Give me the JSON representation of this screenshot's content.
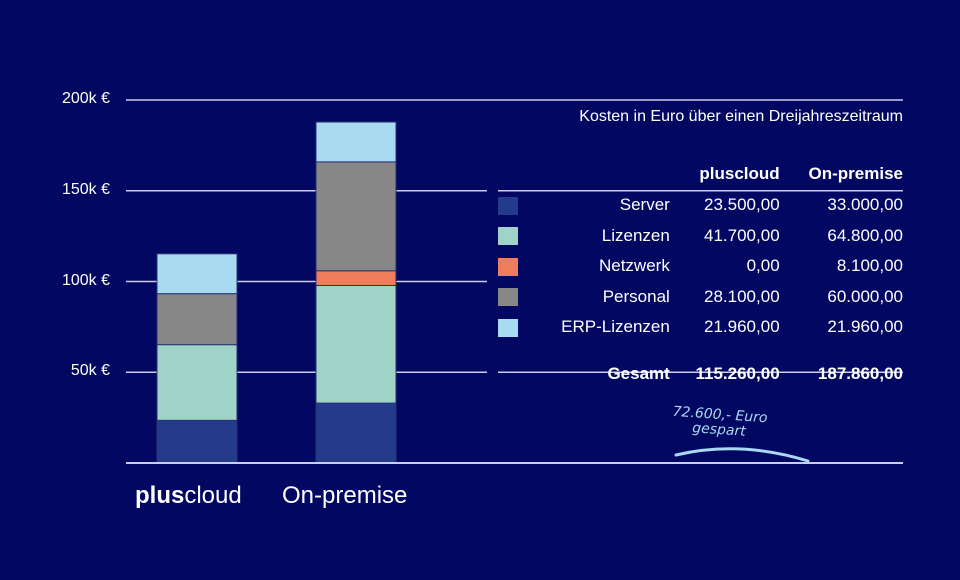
{
  "chart_data": {
    "type": "bar",
    "stacked": true,
    "title": "Kosten in Euro über einen Dreijahreszeitraum",
    "categories": [
      "pluscloud",
      "On-premise"
    ],
    "category_labels": [
      {
        "bold": "plus",
        "rest": "cloud"
      },
      {
        "bold": "",
        "rest": "On-premise"
      }
    ],
    "ylim": [
      0,
      200000
    ],
    "yticks": [
      50000,
      100000,
      150000,
      200000
    ],
    "ytick_labels": [
      "50k €",
      "100k €",
      "150k €",
      "200k €"
    ],
    "grid": true,
    "series": [
      {
        "name": "Server",
        "color": "#243a8a",
        "values": [
          23500,
          33000
        ],
        "labels": [
          "23.500,00",
          "33.000,00"
        ]
      },
      {
        "name": "Lizenzen",
        "color": "#9fd3c7",
        "values": [
          41700,
          64800
        ],
        "labels": [
          "41.700,00",
          "64.800,00"
        ]
      },
      {
        "name": "Netzwerk",
        "color": "#ef7d5b",
        "values": [
          0,
          8100
        ],
        "labels": [
          "0,00",
          "8.100,00"
        ]
      },
      {
        "name": "Personal",
        "color": "#878787",
        "values": [
          28100,
          60000
        ],
        "labels": [
          "28.100,00",
          "60.000,00"
        ]
      },
      {
        "name": "ERP-Lizenzen",
        "color": "#a8daf2",
        "values": [
          21960,
          21960
        ],
        "labels": [
          "21.960,00",
          "21.960,00"
        ]
      }
    ],
    "table_headers": [
      "pluscloud",
      "On-premise"
    ],
    "total_label": "Gesamt",
    "totals": [
      "115.260,00",
      "187.860,00"
    ],
    "annotation": [
      "72.600,- Euro",
      "gespart"
    ]
  }
}
